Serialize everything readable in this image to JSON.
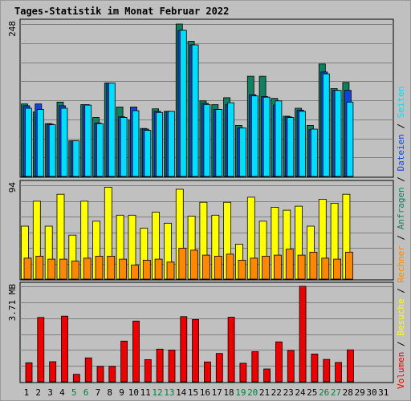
{
  "chart_data": {
    "type": "bar",
    "title": "Tages-Statistik im Monat Februar 2022",
    "days": [
      "1",
      "2",
      "3",
      "4",
      "5",
      "6",
      "7",
      "8",
      "9",
      "10",
      "11",
      "12",
      "13",
      "14",
      "15",
      "16",
      "17",
      "18",
      "19",
      "20",
      "21",
      "22",
      "23",
      "24",
      "25",
      "26",
      "27",
      "28",
      "29",
      "30",
      "31"
    ],
    "weekend_days": [
      "5",
      "6",
      "12",
      "13",
      "19",
      "20",
      "26",
      "27"
    ],
    "colors": {
      "anfragen": "#0f8060",
      "dateien": "#1144dd",
      "seiten": "#00ddff",
      "besuche": "#ffff00",
      "rechner": "#ff8800",
      "volumen": "#ee0000",
      "weekend_label": "#008040",
      "title": "#0033cc",
      "plot_bg": "#c0c0c0",
      "grid": "#808080"
    },
    "top_panel": {
      "ymax_label": "248",
      "ymax": 248,
      "legend": [
        {
          "key": "anfragen",
          "label": "Anfragen"
        },
        {
          "key": "dateien",
          "label": "Dateien"
        },
        {
          "key": "seiten",
          "label": "Seiten"
        }
      ],
      "series": [
        {
          "key": "anfragen",
          "values": [
            118,
            105,
            86,
            121,
            58,
            117,
            96,
            152,
            113,
            92,
            78,
            110,
            106,
            248,
            220,
            123,
            117,
            128,
            83,
            163,
            163,
            127,
            98,
            111,
            83,
            183,
            143,
            153,
            0,
            0,
            0
          ]
        },
        {
          "key": "dateien",
          "values": [
            115,
            118,
            85,
            115,
            58,
            117,
            87,
            152,
            97,
            113,
            77,
            106,
            106,
            238,
            214,
            119,
            109,
            117,
            79,
            133,
            130,
            116,
            97,
            108,
            76,
            170,
            140,
            140,
            0,
            0,
            0
          ]
        },
        {
          "key": "seiten",
          "values": [
            111,
            109,
            84,
            111,
            58,
            116,
            86,
            152,
            96,
            107,
            75,
            104,
            106,
            238,
            214,
            117,
            109,
            120,
            79,
            131,
            129,
            123,
            96,
            106,
            77,
            167,
            140,
            121,
            0,
            0,
            0
          ]
        }
      ]
    },
    "mid_panel": {
      "ymax_label": "94",
      "ymax": 94,
      "legend": [
        {
          "key": "besuche",
          "label": "Besuche"
        },
        {
          "key": "rechner",
          "label": "Rechner"
        }
      ],
      "series": [
        {
          "key": "besuche",
          "values": [
            53,
            78,
            53,
            85,
            44,
            78,
            58,
            92,
            64,
            64,
            51,
            67,
            56,
            90,
            63,
            77,
            64,
            77,
            35,
            82,
            58,
            72,
            69,
            73,
            53,
            80,
            76,
            85,
            0,
            0,
            0
          ]
        },
        {
          "key": "rechner",
          "values": [
            21,
            23,
            20,
            20,
            18,
            21,
            23,
            23,
            20,
            14,
            19,
            20,
            17,
            31,
            29,
            24,
            23,
            25,
            19,
            21,
            23,
            24,
            30,
            24,
            27,
            21,
            20,
            27,
            0,
            0,
            0
          ]
        }
      ]
    },
    "bottom_panel": {
      "ymax_label": "3.71 MB",
      "ymax": 3.71,
      "legend": [
        {
          "key": "volumen",
          "label": "Volumen"
        }
      ],
      "series": [
        {
          "key": "volumen",
          "values": [
            0.74,
            2.5,
            0.78,
            2.55,
            0.29,
            0.93,
            0.6,
            0.6,
            1.58,
            2.36,
            0.86,
            1.27,
            1.23,
            2.53,
            2.42,
            0.77,
            1.1,
            2.51,
            0.72,
            1.17,
            0.5,
            1.55,
            1.22,
            3.71,
            1.08,
            0.87,
            0.75,
            1.24,
            0,
            0,
            0
          ]
        }
      ]
    },
    "legend_separator": " / ",
    "grid": true
  }
}
